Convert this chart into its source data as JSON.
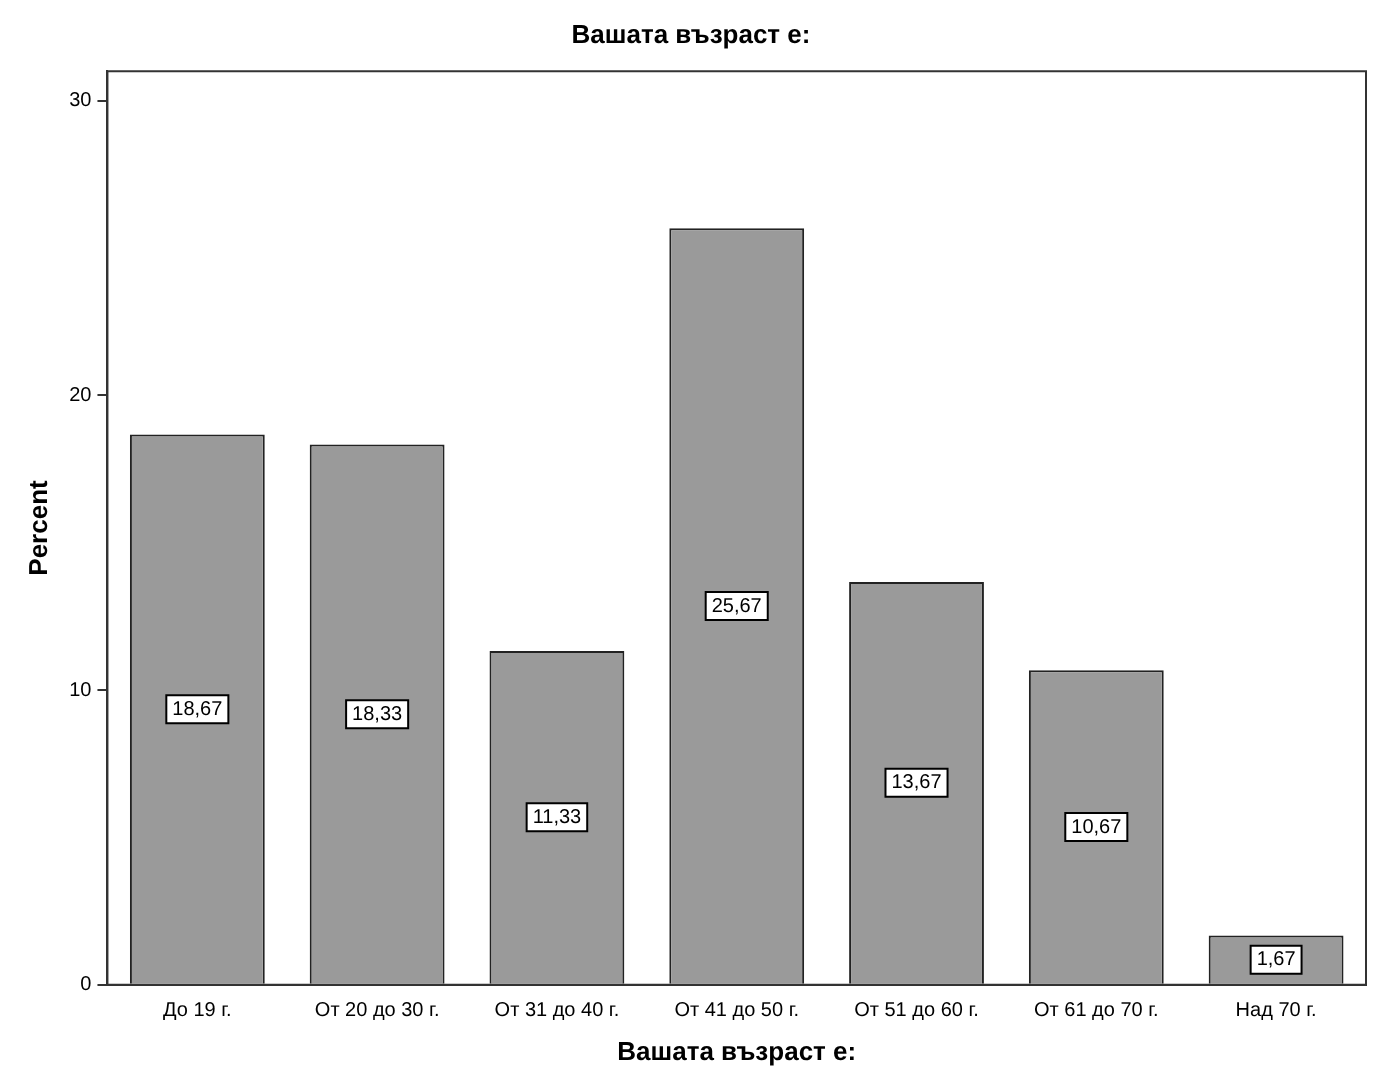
{
  "chart_data": {
    "type": "bar",
    "title": "Вашата възраст е:",
    "xlabel": "Вашата възраст е:",
    "ylabel": "Percent",
    "categories": [
      "До 19 г.",
      "От 20 до 30 г.",
      "От 31 до 40 г.",
      "От 41 до 50 г.",
      "От 51 до 60 г.",
      "От 61 до 70 г.",
      "Над 70 г."
    ],
    "values": [
      18.67,
      18.33,
      11.33,
      25.67,
      13.67,
      10.67,
      1.67
    ],
    "value_labels": [
      "18,67",
      "18,33",
      "11,33",
      "25,67",
      "13,67",
      "10,67",
      "1,67"
    ],
    "color": "#9a9a9a",
    "ylim": [
      0,
      31
    ],
    "yticks": [
      0,
      10,
      20,
      30
    ],
    "grid": false,
    "legend": false
  }
}
